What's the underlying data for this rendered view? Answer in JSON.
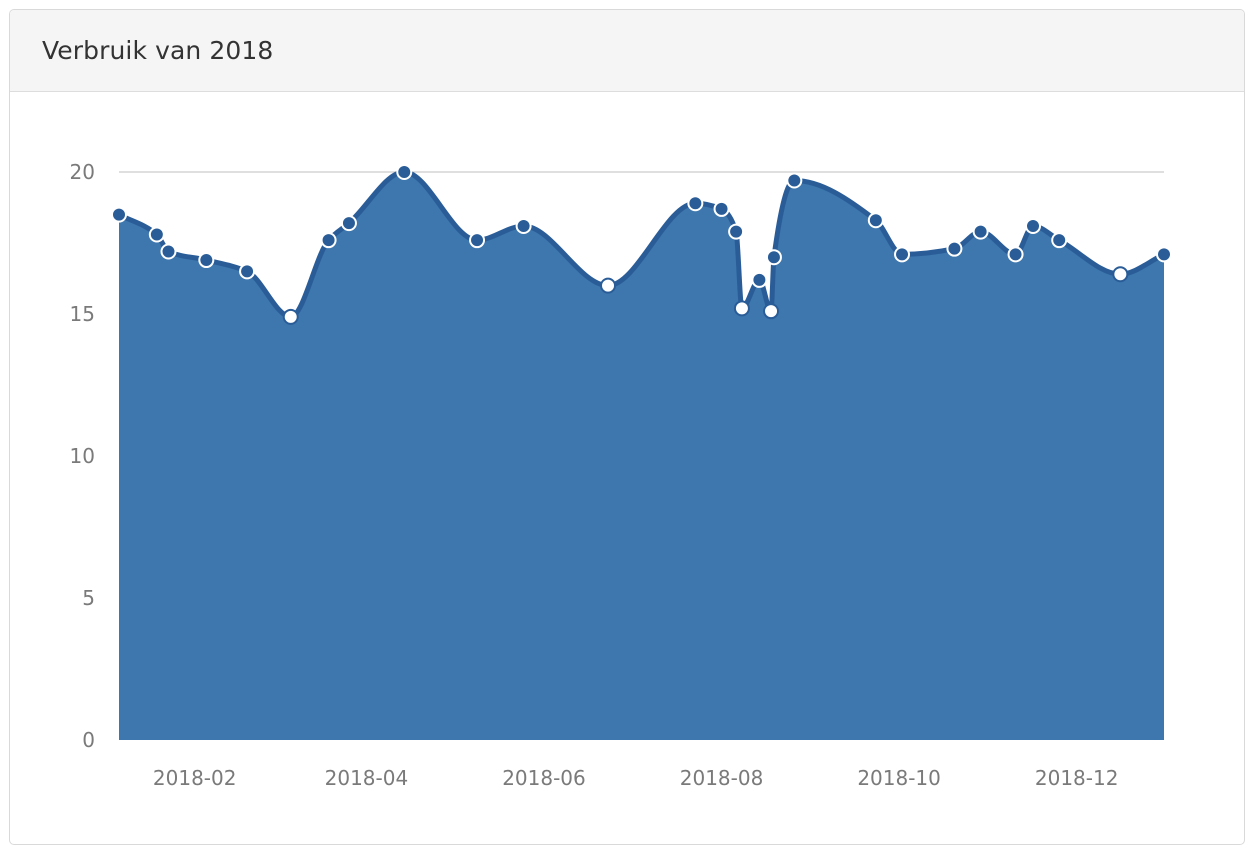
{
  "panel": {
    "title": "Verbruik van 2018"
  },
  "colors": {
    "area_fill": "#3d77ae",
    "line": "#2a5d98",
    "marker_filled": "#2a5d98",
    "marker_hollow": "#ffffff",
    "gridline": "#cccccc"
  },
  "chart_data": {
    "type": "area",
    "title": "",
    "xlabel": "",
    "ylabel": "",
    "ylim": [
      0,
      20
    ],
    "yticks": [
      "0",
      "5",
      "10",
      "15",
      "20"
    ],
    "xlim": [
      "2018-01-06",
      "2018-12-31"
    ],
    "xticks": [
      {
        "date": "2018-02-01",
        "label": "2018-02"
      },
      {
        "date": "2018-04-01",
        "label": "2018-04"
      },
      {
        "date": "2018-06-01",
        "label": "2018-06"
      },
      {
        "date": "2018-08-01",
        "label": "2018-08"
      },
      {
        "date": "2018-10-01",
        "label": "2018-10"
      },
      {
        "date": "2018-12-01",
        "label": "2018-12"
      }
    ],
    "grid": "top-only",
    "series": [
      {
        "points": [
          {
            "x": "2018-01-06",
            "y": 18.5,
            "marker": "filled"
          },
          {
            "x": "2018-01-19",
            "y": 17.8,
            "marker": "filled"
          },
          {
            "x": "2018-01-23",
            "y": 17.2,
            "marker": "filled"
          },
          {
            "x": "2018-02-05",
            "y": 16.9,
            "marker": "filled"
          },
          {
            "x": "2018-02-19",
            "y": 16.5,
            "marker": "filled"
          },
          {
            "x": "2018-03-06",
            "y": 14.9,
            "marker": "hollow"
          },
          {
            "x": "2018-03-19",
            "y": 17.6,
            "marker": "filled"
          },
          {
            "x": "2018-03-26",
            "y": 18.2,
            "marker": "filled"
          },
          {
            "x": "2018-04-14",
            "y": 20.0,
            "marker": "filled"
          },
          {
            "x": "2018-05-09",
            "y": 17.6,
            "marker": "filled"
          },
          {
            "x": "2018-05-25",
            "y": 18.1,
            "marker": "filled"
          },
          {
            "x": "2018-06-23",
            "y": 16.0,
            "marker": "hollow"
          },
          {
            "x": "2018-07-23",
            "y": 18.9,
            "marker": "filled"
          },
          {
            "x": "2018-08-01",
            "y": 18.7,
            "marker": "filled"
          },
          {
            "x": "2018-08-06",
            "y": 17.9,
            "marker": "filled"
          },
          {
            "x": "2018-08-08",
            "y": 15.2,
            "marker": "hollow"
          },
          {
            "x": "2018-08-14",
            "y": 16.2,
            "marker": "filled"
          },
          {
            "x": "2018-08-18",
            "y": 15.1,
            "marker": "hollow"
          },
          {
            "x": "2018-08-19",
            "y": 17.0,
            "marker": "filled"
          },
          {
            "x": "2018-08-26",
            "y": 19.7,
            "marker": "filled"
          },
          {
            "x": "2018-09-23",
            "y": 18.3,
            "marker": "filled"
          },
          {
            "x": "2018-10-02",
            "y": 17.1,
            "marker": "filled"
          },
          {
            "x": "2018-10-20",
            "y": 17.3,
            "marker": "filled"
          },
          {
            "x": "2018-10-29",
            "y": 17.9,
            "marker": "filled"
          },
          {
            "x": "2018-11-10",
            "y": 17.1,
            "marker": "filled"
          },
          {
            "x": "2018-11-16",
            "y": 18.1,
            "marker": "filled"
          },
          {
            "x": "2018-11-25",
            "y": 17.6,
            "marker": "filled"
          },
          {
            "x": "2018-12-16",
            "y": 16.4,
            "marker": "hollow"
          },
          {
            "x": "2018-12-31",
            "y": 17.1,
            "marker": "filled"
          }
        ]
      }
    ]
  }
}
